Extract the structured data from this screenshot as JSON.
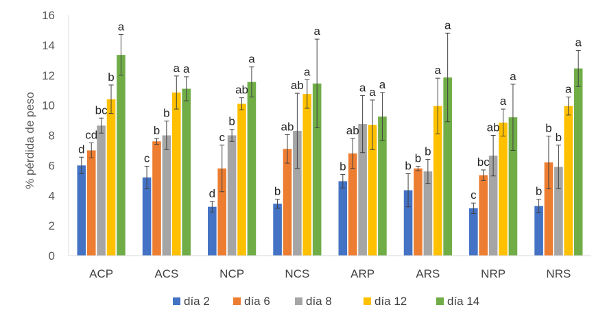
{
  "chart_data": {
    "type": "bar",
    "ylabel": "% pérdida de peso",
    "xlabel": "",
    "ylim": [
      0,
      16
    ],
    "yticks": [
      0,
      2,
      4,
      6,
      8,
      10,
      12,
      14,
      16
    ],
    "grid": false,
    "legend_position": "bottom",
    "error_bars": true,
    "categories": [
      "ACP",
      "ACS",
      "NCP",
      "NCS",
      "ARP",
      "ARS",
      "NRP",
      "NRS"
    ],
    "series": [
      {
        "name": "día 2",
        "color": "#4472C4",
        "values": [
          6.0,
          5.2,
          3.25,
          3.45,
          4.95,
          4.35,
          3.15,
          3.3
        ],
        "errors": [
          0.55,
          0.75,
          0.35,
          0.3,
          0.45,
          1.1,
          0.35,
          0.45
        ],
        "labels": [
          "d",
          "c",
          "d",
          "b",
          "b",
          "b",
          "c",
          "b"
        ]
      },
      {
        "name": "día 6",
        "color": "#ED7D31",
        "values": [
          7.0,
          7.6,
          5.8,
          7.1,
          6.8,
          5.8,
          5.35,
          6.2
        ],
        "errors": [
          0.5,
          0.2,
          1.55,
          0.95,
          1.0,
          0.15,
          0.35,
          1.75
        ],
        "labels": [
          "cd",
          "b",
          "c",
          "ab",
          "ab",
          "b",
          "bc",
          "b"
        ]
      },
      {
        "name": "día 8",
        "color": "#A5A5A5",
        "values": [
          8.65,
          8.0,
          8.0,
          8.3,
          8.75,
          5.6,
          6.65,
          5.9
        ],
        "errors": [
          0.5,
          0.95,
          0.4,
          2.5,
          1.9,
          0.8,
          1.35,
          1.45
        ],
        "labels": [
          "bc",
          "b",
          "b",
          "ab",
          "a",
          "b",
          "ab",
          "b"
        ]
      },
      {
        "name": "día 12",
        "color": "#FFC000",
        "values": [
          10.4,
          10.85,
          10.1,
          10.75,
          8.7,
          9.95,
          8.85,
          9.95
        ],
        "errors": [
          0.95,
          1.1,
          0.4,
          0.95,
          1.65,
          1.85,
          0.9,
          0.6
        ],
        "labels": [
          "b",
          "a",
          "ab",
          "a",
          "a",
          "a",
          "a",
          "a"
        ]
      },
      {
        "name": "día 14",
        "color": "#70AD47",
        "values": [
          13.35,
          11.1,
          11.55,
          11.45,
          9.25,
          11.85,
          9.2,
          12.45
        ],
        "errors": [
          1.35,
          0.8,
          1.0,
          2.95,
          1.6,
          2.95,
          2.2,
          1.2
        ],
        "labels": [
          "a",
          "a",
          "a",
          "a",
          "a",
          "a",
          "a",
          "a"
        ]
      }
    ]
  }
}
